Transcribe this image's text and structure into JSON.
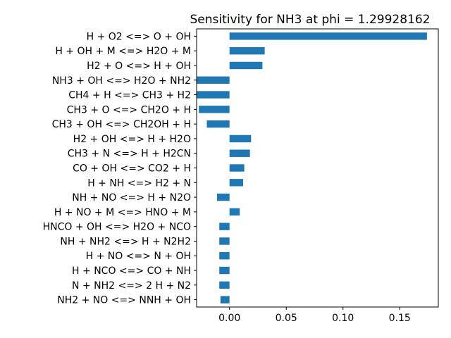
{
  "chart_data": {
    "type": "bar",
    "orientation": "horizontal",
    "title": "Sensitivity for NH3 at phi = 1.29928162",
    "xlabel": "",
    "ylabel": "",
    "bar_color": "#1f77b4",
    "xlim": [
      -0.029,
      0.184
    ],
    "xticks": [
      0.0,
      0.05,
      0.1,
      0.15
    ],
    "xtick_labels": [
      "0.00",
      "0.05",
      "0.10",
      "0.15"
    ],
    "grid": false,
    "categories": [
      "H + O2 <=> O + OH",
      "H + OH + M <=> H2O + M",
      "H2 + O <=> H + OH",
      "NH3 + OH <=> H2O + NH2",
      "CH4 + H <=> CH3 + H2",
      "CH3 + O <=> CH2O + H",
      "CH3 + OH <=> CH2OH + H",
      "H2 + OH <=> H + H2O",
      "CH3 + N <=> H + H2CN",
      "CO + OH <=> CO2 + H",
      "H + NH <=> H2 + N",
      "NH + NO <=> H + N2O",
      "H + NO + M <=> HNO + M",
      "HNCO + OH <=> H2O + NCO",
      "NH + NH2 <=> H + N2H2",
      "H + NO <=> N + OH",
      "H + NCO <=> CO + NH",
      "N + NH2 <=> 2 H + N2",
      "NH2 + NO <=> NNH + OH"
    ],
    "values": [
      0.174,
      0.031,
      0.029,
      -0.029,
      -0.029,
      -0.027,
      -0.02,
      0.019,
      0.018,
      0.013,
      0.012,
      -0.011,
      0.009,
      -0.009,
      -0.009,
      -0.009,
      -0.009,
      -0.009,
      -0.008
    ]
  }
}
